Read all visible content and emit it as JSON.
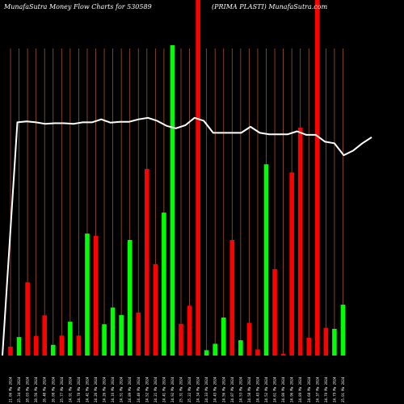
{
  "chart_data": {
    "type": "bar",
    "title_left": "MunafaSutra  Money Flow  Charts for 530589",
    "title_right": "(PRIMA PLASTI) MunafaSutra.com",
    "colors": {
      "background": "#000000",
      "up": "#00ff00",
      "down": "#ff0000",
      "grid": "#a0522d",
      "line": "#ffffff"
    },
    "bar_ylim": [
      0,
      100
    ],
    "line_ylim": [
      0,
      100
    ],
    "bars": [
      {
        "label": "21.66 Ma 2024",
        "value": 2.5,
        "dir": "down"
      },
      {
        "label": "25.34 Ma 2024",
        "value": 5.2,
        "dir": "up"
      },
      {
        "label": "28.03 Ma 2024",
        "value": 20.6,
        "dir": "down"
      },
      {
        "label": "28.56 Ma 2024",
        "value": 5.5,
        "dir": "down"
      },
      {
        "label": "26.48 Ma 2024",
        "value": 11.3,
        "dir": "down"
      },
      {
        "label": "26.08 Ma 2024",
        "value": 3.0,
        "dir": "up"
      },
      {
        "label": "25.77 Ma 2024",
        "value": 5.6,
        "dir": "down"
      },
      {
        "label": "24.91 Ma 2024",
        "value": 9.5,
        "dir": "up"
      },
      {
        "label": "24.78 Ma 2024",
        "value": 5.6,
        "dir": "down"
      },
      {
        "label": "24.41 Ma 2024",
        "value": 34.3,
        "dir": "up"
      },
      {
        "label": "24.26 Ma 2024",
        "value": 33.7,
        "dir": "down"
      },
      {
        "label": "24.26 Ma 2024",
        "value": 8.8,
        "dir": "up"
      },
      {
        "label": "24.16 Ma 2024",
        "value": 13.5,
        "dir": "up"
      },
      {
        "label": "24.51 Ma 2024",
        "value": 11.4,
        "dir": "up"
      },
      {
        "label": "24.89 Ma 2024",
        "value": 32.5,
        "dir": "up"
      },
      {
        "label": "24.40 Ma 2024",
        "value": 12.1,
        "dir": "down"
      },
      {
        "label": "24.52 Ma 2024",
        "value": 52.5,
        "dir": "down"
      },
      {
        "label": "24.21 Ma 2024",
        "value": 25.7,
        "dir": "down"
      },
      {
        "label": "24.41 Ma 2024",
        "value": 40.2,
        "dir": "up"
      },
      {
        "label": "24.92 Ma 2024",
        "value": 87.3,
        "dir": "up"
      },
      {
        "label": "25.31 Ma 2024",
        "value": 8.9,
        "dir": "down"
      },
      {
        "label": "25.22 Ma 2024",
        "value": 14.0,
        "dir": "down"
      },
      {
        "label": "24.34 Ma 2024",
        "value": 100,
        "dir": "down"
      },
      {
        "label": "24.33 Ma 2024",
        "value": 1.5,
        "dir": "up"
      },
      {
        "label": "24.43 Ma 2024",
        "value": 3.3,
        "dir": "up"
      },
      {
        "label": "24.56 Ma 2024",
        "value": 10.7,
        "dir": "up"
      },
      {
        "label": "24.87 Ma 2024",
        "value": 32.5,
        "dir": "down"
      },
      {
        "label": "24.53 Ma 2024",
        "value": 4.3,
        "dir": "up"
      },
      {
        "label": "24.58 Ma 2024",
        "value": 9.2,
        "dir": "down"
      },
      {
        "label": "24.43 Ma 2024",
        "value": 1.7,
        "dir": "down"
      },
      {
        "label": "24.52 Ma 2024",
        "value": 53.8,
        "dir": "up"
      },
      {
        "label": "24.61 Ma 2024",
        "value": 24.3,
        "dir": "down"
      },
      {
        "label": "24.80 Ma 2024",
        "value": 0.5,
        "dir": "down"
      },
      {
        "label": "24.96 Ma 2024",
        "value": 51.5,
        "dir": "down"
      },
      {
        "label": "24.89 Ma 2024",
        "value": 64.1,
        "dir": "down"
      },
      {
        "label": "24.68 Ma 2024",
        "value": 5.0,
        "dir": "down"
      },
      {
        "label": "24.37 Ma 2024",
        "value": 100,
        "dir": "down"
      },
      {
        "label": "24.70 Ma 2024",
        "value": 7.8,
        "dir": "down"
      },
      {
        "label": "24.79 Ma 2024",
        "value": 7.5,
        "dir": "up"
      },
      {
        "label": "25.01 Ma 2024",
        "value": 14.3,
        "dir": "up"
      }
    ],
    "line_values": [
      0,
      78,
      78.3,
      78,
      77.5,
      77.7,
      77.7,
      77.5,
      78,
      78,
      79,
      77.9,
      78.2,
      78.2,
      79,
      79.5,
      78.5,
      76.8,
      76,
      77,
      79.5,
      78.5,
      74.5,
      74.5,
      74.5,
      74.5,
      76.5,
      74.5,
      74,
      74,
      74,
      75,
      73.8,
      73.8,
      71.5,
      71,
      67,
      68.5,
      71,
      73
    ]
  }
}
